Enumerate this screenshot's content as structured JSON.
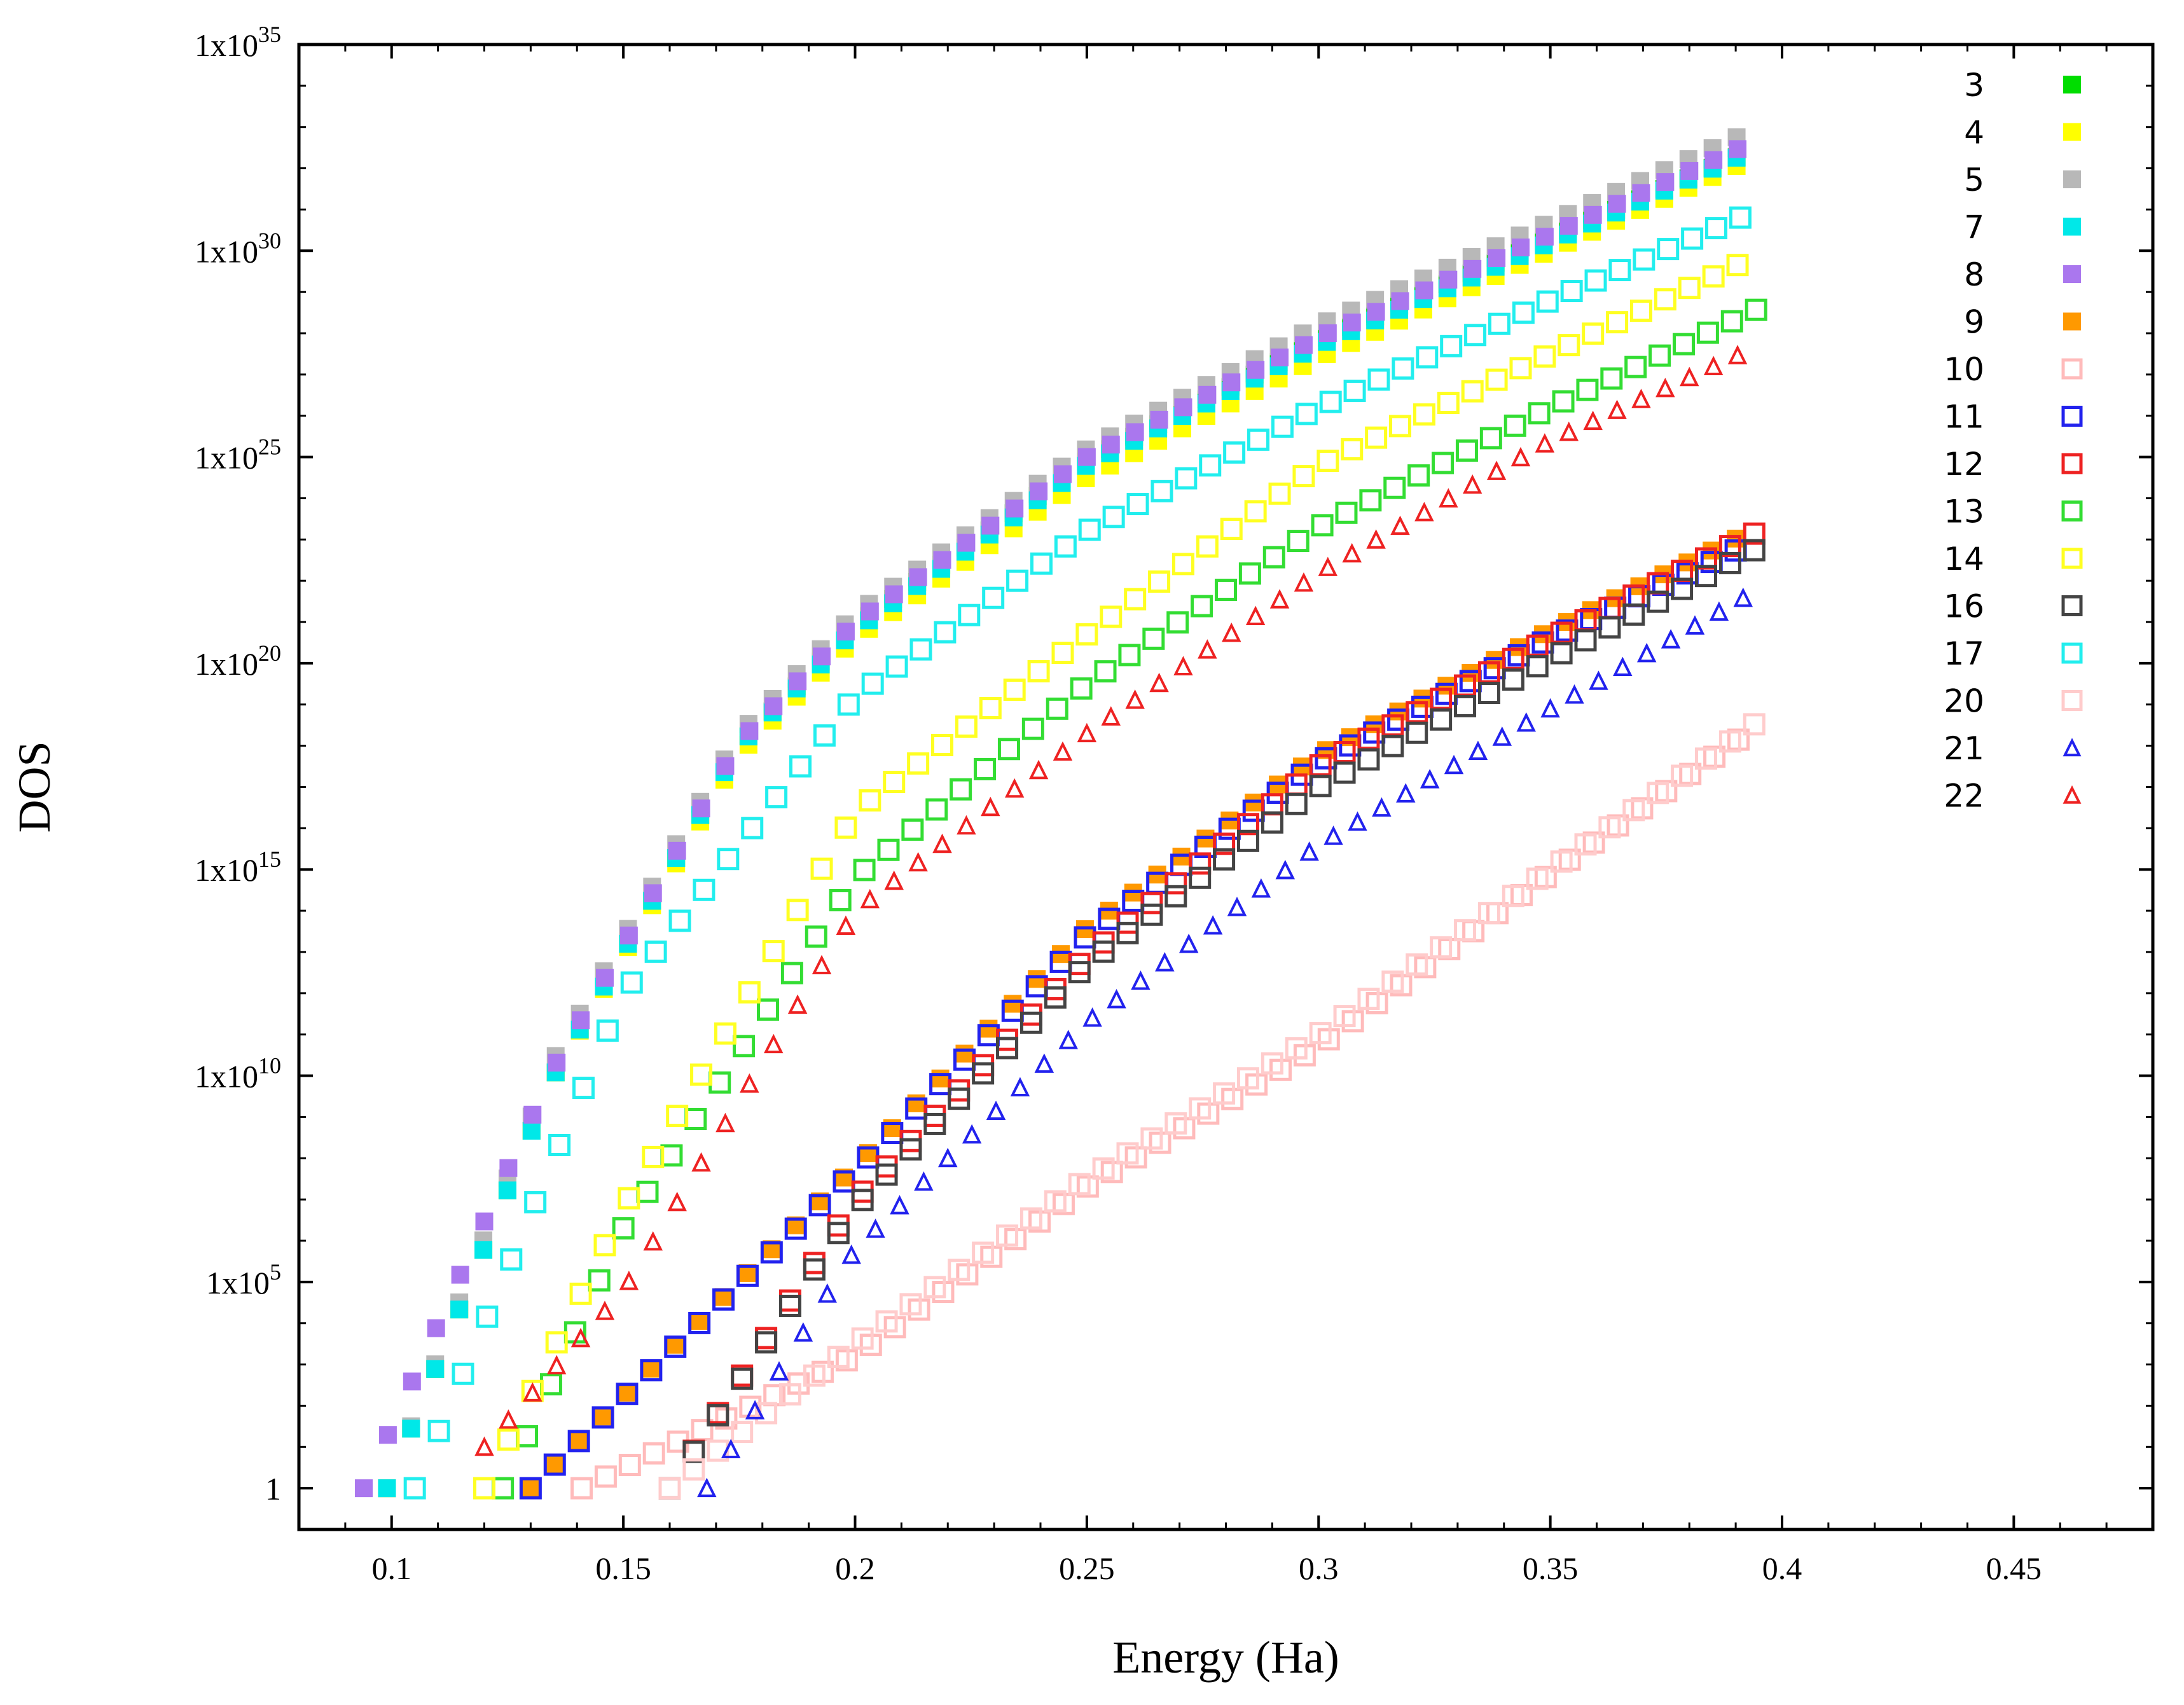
{
  "chart_data": {
    "type": "scatter",
    "title": "",
    "xlabel": "Energy (Ha)",
    "ylabel": "DOS",
    "xlim": [
      0.08,
      0.48
    ],
    "xticks": [
      0.1,
      0.15,
      0.2,
      0.25,
      0.3,
      0.35,
      0.4,
      0.45
    ],
    "xtick_labels": [
      "0.1",
      "0.15",
      "0.2",
      "0.25",
      "0.3",
      "0.35",
      "0.4",
      "0.45"
    ],
    "y_scale": "log",
    "ylim_exponent": [
      -1,
      35
    ],
    "yticks": [
      {
        "mantissa": "1",
        "exp": ""
      },
      {
        "mantissa": "1x10",
        "exp": "5"
      },
      {
        "mantissa": "1x10",
        "exp": "10"
      },
      {
        "mantissa": "1x10",
        "exp": "15"
      },
      {
        "mantissa": "1x10",
        "exp": "20"
      },
      {
        "mantissa": "1x10",
        "exp": "25"
      },
      {
        "mantissa": "1x10",
        "exp": "30"
      },
      {
        "mantissa": "1x10",
        "exp": "35"
      }
    ],
    "legend_position": "top-right",
    "series": [
      {
        "name": "3",
        "color": "#00dd00",
        "marker": "filled-square",
        "x": [
          0.099,
          0.135,
          0.175,
          0.2,
          0.25,
          0.3,
          0.35,
          0.395
        ],
        "log10_y": [
          0,
          10,
          18,
          20.9,
          24.9,
          27.8,
          30.3,
          32.5
        ]
      },
      {
        "name": "4",
        "color": "#ffff00",
        "marker": "filled-square",
        "x": [
          0.099,
          0.135,
          0.175,
          0.2,
          0.25,
          0.3,
          0.35,
          0.395
        ],
        "log10_y": [
          0,
          10,
          17.8,
          20.6,
          24.5,
          27.4,
          30,
          32.3
        ]
      },
      {
        "name": "5",
        "color": "#b8b8b8",
        "marker": "filled-square",
        "x": [
          0.099,
          0.135,
          0.175,
          0.2,
          0.25,
          0.3,
          0.35,
          0.395
        ],
        "log10_y": [
          0,
          10.4,
          18.3,
          21.2,
          25.2,
          28.2,
          30.7,
          33
        ]
      },
      {
        "name": "7",
        "color": "#00e8e8",
        "marker": "filled-square",
        "x": [
          0.099,
          0.135,
          0.175,
          0.2,
          0.25,
          0.3,
          0.35,
          0.395
        ],
        "log10_y": [
          0,
          10,
          18,
          20.8,
          24.8,
          27.7,
          30.2,
          32.5
        ]
      },
      {
        "name": "8",
        "color": "#aa77ee",
        "marker": "filled-square",
        "x": [
          0.094,
          0.135,
          0.175,
          0.2,
          0.25,
          0.3,
          0.35,
          0.395
        ],
        "log10_y": [
          0,
          10.2,
          18.1,
          21,
          25,
          27.9,
          30.4,
          32.7
        ]
      },
      {
        "name": "9",
        "color": "#ff9900",
        "marker": "filled-square",
        "x": [
          0.13,
          0.2,
          0.25,
          0.3,
          0.35,
          0.395
        ],
        "log10_y": [
          0,
          7.8,
          13.6,
          17.8,
          20.8,
          23.3
        ]
      },
      {
        "name": "10",
        "color": "#ffbbbb",
        "marker": "open-square",
        "x": [
          0.141,
          0.2,
          0.25,
          0.3,
          0.35,
          0.395
        ],
        "log10_y": [
          0,
          3.2,
          7.3,
          10.7,
          14.9,
          18.5
        ]
      },
      {
        "name": "11",
        "color": "#2222ee",
        "marker": "open-square",
        "x": [
          0.13,
          0.2,
          0.25,
          0.3,
          0.35,
          0.395
        ],
        "log10_y": [
          0,
          7.7,
          13.4,
          17.6,
          20.6,
          23
        ]
      },
      {
        "name": "12",
        "color": "#ee2222",
        "marker": "open-square",
        "x": [
          0.16,
          0.2,
          0.25,
          0.3,
          0.35,
          0.395
        ],
        "log10_y": [
          0,
          7,
          12.9,
          17.5,
          20.6,
          23.2
        ]
      },
      {
        "name": "13",
        "color": "#33dd33",
        "marker": "open-square",
        "x": [
          0.124,
          0.15,
          0.2,
          0.25,
          0.3,
          0.35,
          0.395
        ],
        "log10_y": [
          0,
          6.3,
          14.8,
          19.5,
          23.3,
          26.2,
          28.6
        ]
      },
      {
        "name": "14",
        "color": "#ffff22",
        "marker": "open-square",
        "x": [
          0.12,
          0.15,
          0.2,
          0.25,
          0.3,
          0.35,
          0.395
        ],
        "log10_y": [
          0,
          6.8,
          16.4,
          20.7,
          24.8,
          27.5,
          29.9
        ]
      },
      {
        "name": "16",
        "color": "#444444",
        "marker": "open-square",
        "x": [
          0.16,
          0.2,
          0.25,
          0.3,
          0.35,
          0.395
        ],
        "log10_y": [
          0,
          6.8,
          12.7,
          17,
          20.1,
          22.8
        ]
      },
      {
        "name": "17",
        "color": "#22eeee",
        "marker": "open-square",
        "x": [
          0.105,
          0.15,
          0.2,
          0.25,
          0.3,
          0.35,
          0.395
        ],
        "log10_y": [
          0,
          12,
          19.2,
          23.2,
          26.2,
          28.8,
          31
        ]
      },
      {
        "name": "20",
        "color": "#ffcccc",
        "marker": "open-square",
        "x": [
          0.16,
          0.2,
          0.25,
          0.3,
          0.35,
          0.395
        ],
        "log10_y": [
          0,
          3.5,
          7.5,
          11,
          15,
          18.6
        ]
      },
      {
        "name": "21",
        "color": "#2222ee",
        "marker": "open-triangle",
        "x": [
          0.168,
          0.2,
          0.25,
          0.3,
          0.35,
          0.395
        ],
        "log10_y": [
          0,
          5.8,
          11.3,
          15.6,
          18.9,
          21.8
        ]
      },
      {
        "name": "22",
        "color": "#ee2222",
        "marker": "open-triangle",
        "x": [
          0.12,
          0.15,
          0.2,
          0.25,
          0.3,
          0.35,
          0.395
        ],
        "log10_y": [
          1,
          4.8,
          14,
          18.3,
          22.2,
          25.4,
          27.7
        ]
      }
    ]
  }
}
